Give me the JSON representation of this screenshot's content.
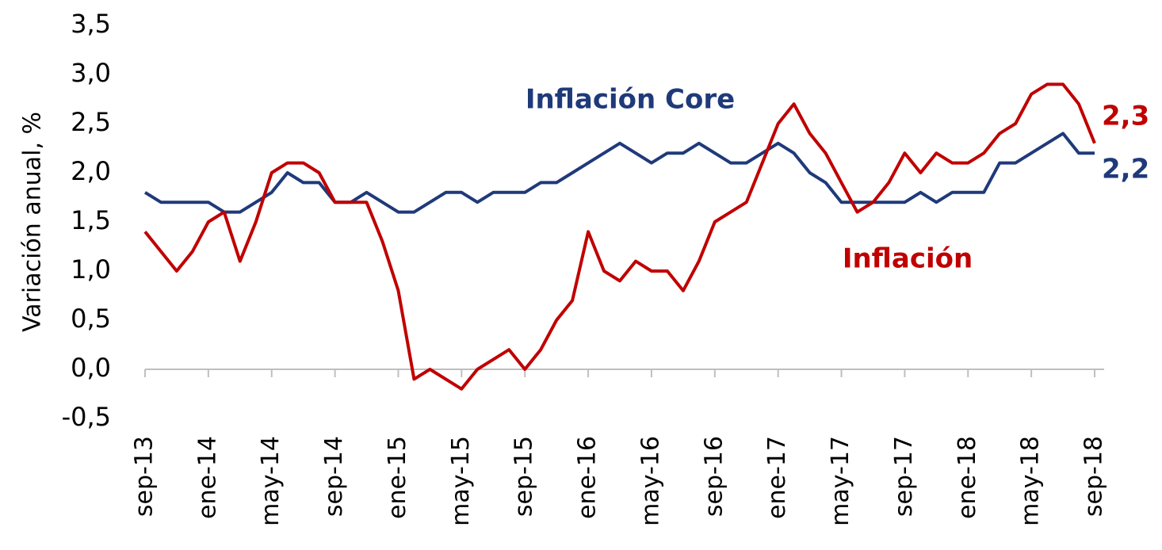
{
  "chart_data": {
    "type": "line",
    "y_label": "Variación anual, %",
    "categories": [
      "sep-13",
      null,
      null,
      null,
      "ene-14",
      null,
      null,
      null,
      "may-14",
      null,
      null,
      null,
      "sep-14",
      null,
      null,
      null,
      "ene-15",
      null,
      null,
      null,
      "may-15",
      null,
      null,
      null,
      "sep-15",
      null,
      null,
      null,
      "ene-16",
      null,
      null,
      null,
      "may-16",
      null,
      null,
      null,
      "sep-16",
      null,
      null,
      null,
      "ene-17",
      null,
      null,
      null,
      "may-17",
      null,
      null,
      null,
      "sep-17",
      null,
      null,
      null,
      "ene-18",
      null,
      null,
      null,
      "may-18",
      null,
      null,
      null,
      "sep-18"
    ],
    "series": [
      {
        "name": "Inflación Core",
        "color": "#1f3a7a",
        "end_label": "2,2",
        "values": [
          1.8,
          1.7,
          1.7,
          1.7,
          1.7,
          1.6,
          1.6,
          1.7,
          1.8,
          2.0,
          1.9,
          1.9,
          1.7,
          1.7,
          1.8,
          1.7,
          1.6,
          1.6,
          1.7,
          1.8,
          1.8,
          1.7,
          1.8,
          1.8,
          1.8,
          1.9,
          1.9,
          2.0,
          2.1,
          2.2,
          2.3,
          2.2,
          2.1,
          2.2,
          2.2,
          2.3,
          2.2,
          2.1,
          2.1,
          2.2,
          2.3,
          2.2,
          2.0,
          1.9,
          1.7,
          1.7,
          1.7,
          1.7,
          1.7,
          1.8,
          1.7,
          1.8,
          1.8,
          1.8,
          2.1,
          2.1,
          2.2,
          2.3,
          2.4,
          2.2,
          2.2
        ]
      },
      {
        "name": "Inflación",
        "color": "#c00000",
        "end_label": "2,3",
        "values": [
          1.4,
          1.2,
          1.0,
          1.2,
          1.5,
          1.6,
          1.1,
          1.5,
          2.0,
          2.1,
          2.1,
          2.0,
          1.7,
          1.7,
          1.7,
          1.3,
          0.8,
          -0.1,
          0.0,
          -0.1,
          -0.2,
          0.0,
          0.1,
          0.2,
          0.0,
          0.2,
          0.5,
          0.7,
          1.4,
          1.0,
          0.9,
          1.1,
          1.0,
          1.0,
          0.8,
          1.1,
          1.5,
          1.6,
          1.7,
          2.1,
          2.5,
          2.7,
          2.4,
          2.2,
          1.9,
          1.6,
          1.7,
          1.9,
          2.2,
          2.0,
          2.2,
          2.1,
          2.1,
          2.2,
          2.4,
          2.5,
          2.8,
          2.9,
          2.9,
          2.7,
          2.3
        ]
      }
    ],
    "ylim": [
      -0.5,
      3.5
    ],
    "yticks": [
      {
        "value": 3.5,
        "label": "3,5"
      },
      {
        "value": 3.0,
        "label": "3,0"
      },
      {
        "value": 2.5,
        "label": "2,5"
      },
      {
        "value": 2.0,
        "label": "2,0"
      },
      {
        "value": 1.5,
        "label": "1,5"
      },
      {
        "value": 1.0,
        "label": "1,0"
      },
      {
        "value": 0.5,
        "label": "0,5"
      },
      {
        "value": 0.0,
        "label": "0,0"
      },
      {
        "value": -0.5,
        "label": "-0,5"
      }
    ],
    "grid": false
  }
}
